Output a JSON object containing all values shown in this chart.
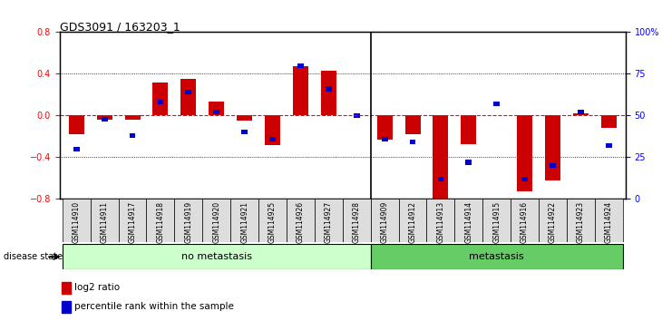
{
  "title": "GDS3091 / 163203_1",
  "samples": [
    "GSM114910",
    "GSM114911",
    "GSM114917",
    "GSM114918",
    "GSM114919",
    "GSM114920",
    "GSM114921",
    "GSM114925",
    "GSM114926",
    "GSM114927",
    "GSM114928",
    "GSM114909",
    "GSM114912",
    "GSM114913",
    "GSM114914",
    "GSM114915",
    "GSM114916",
    "GSM114922",
    "GSM114923",
    "GSM114924"
  ],
  "log2_ratio": [
    -0.18,
    -0.04,
    -0.04,
    0.32,
    0.35,
    0.13,
    -0.05,
    -0.28,
    0.47,
    0.43,
    0.0,
    -0.23,
    -0.18,
    -0.82,
    -0.27,
    0.0,
    -0.73,
    -0.62,
    0.02,
    -0.12
  ],
  "percentile": [
    30,
    48,
    38,
    58,
    64,
    52,
    40,
    36,
    80,
    66,
    50,
    36,
    34,
    12,
    22,
    57,
    12,
    20,
    52,
    32
  ],
  "no_metastasis_count": 11,
  "metastasis_count": 9,
  "ylim_left": [
    -0.8,
    0.8
  ],
  "ylim_right": [
    0,
    100
  ],
  "yticks_left": [
    -0.8,
    -0.4,
    0.0,
    0.4,
    0.8
  ],
  "yticks_right": [
    0,
    25,
    50,
    75,
    100
  ],
  "bar_color_red": "#cc0000",
  "bar_color_blue": "#0000cc",
  "no_metastasis_color": "#ccffcc",
  "metastasis_color": "#66cc66"
}
